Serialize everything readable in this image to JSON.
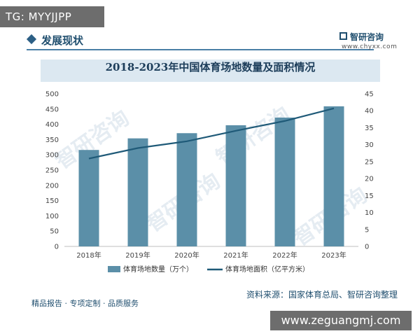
{
  "badge_top": "TG: MYYJJPP",
  "section_heading": "发展现状",
  "brand": {
    "name": "智研咨询",
    "url": "www.chyxx.com"
  },
  "chart_title": "2018-2023年中国体育场地数量及面积情况",
  "source_note": "资料来源：国家体育总局、智研咨询整理",
  "footer_note": "精品报告 · 专项定制 · 品质服务",
  "badge_bottom": "www.zeguangmj.com",
  "colors": {
    "bar": "#5b8fa8",
    "line": "#1f5a78",
    "title_band": "#dce8f1"
  },
  "chart_data": {
    "type": "bar",
    "title": "2018-2023年中国体育场地数量及面积情况",
    "categories": [
      "2018年",
      "2019年",
      "2020年",
      "2021年",
      "2022年",
      "2023年"
    ],
    "series": [
      {
        "name": "体育场地数量（万个）",
        "type": "bar",
        "axis": "left",
        "values": [
          316,
          354,
          371,
          397,
          422,
          459
        ]
      },
      {
        "name": "体育场地面积（亿平方米）",
        "type": "line",
        "axis": "right",
        "values": [
          25.9,
          29.0,
          31.0,
          34.1,
          37.0,
          40.7
        ]
      }
    ],
    "y_left": {
      "min": 0,
      "max": 500,
      "ticks": [
        0,
        50,
        100,
        150,
        200,
        250,
        300,
        350,
        400,
        450,
        500
      ]
    },
    "y_right": {
      "min": 0,
      "max": 45,
      "ticks": [
        0,
        5,
        10,
        15,
        20,
        25,
        30,
        35,
        40,
        45
      ]
    },
    "grid": false,
    "legend_position": "bottom"
  }
}
